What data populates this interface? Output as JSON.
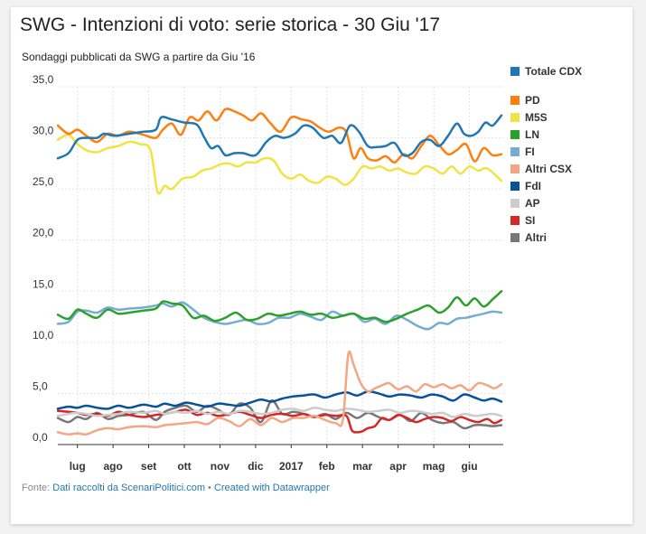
{
  "chart_data": {
    "type": "line",
    "title": "SWG - Intenzioni di voto: serie storica - 30 Giu '17",
    "subtitle": "Sondaggi pubblicati da SWG a partire da Giu '16",
    "footer_prefix": "Fonte: ",
    "footer_source": "Dati raccolti da ScenariPolitici.com",
    "footer_separator": " • ",
    "footer_credit": "Created with Datawrapper",
    "ylim": [
      0,
      35
    ],
    "yticks": [
      0,
      5,
      10,
      15,
      20,
      25,
      30,
      35
    ],
    "ytick_labels": [
      "0,0",
      "5,0",
      "10,0",
      "15,0",
      "20,0",
      "25,0",
      "30,0",
      "35,0"
    ],
    "xlim": [
      0,
      12.5
    ],
    "xticks": [
      {
        "label": "lug",
        "x": 0.55
      },
      {
        "label": "ago",
        "x": 1.55
      },
      {
        "label": "set",
        "x": 2.55
      },
      {
        "label": "ott",
        "x": 3.55
      },
      {
        "label": "nov",
        "x": 4.55
      },
      {
        "label": "dic",
        "x": 5.55
      },
      {
        "label": "2017",
        "x": 6.55
      },
      {
        "label": "feb",
        "x": 7.55
      },
      {
        "label": "mar",
        "x": 8.55
      },
      {
        "label": "apr",
        "x": 9.55
      },
      {
        "label": "mag",
        "x": 10.55
      },
      {
        "label": "giu",
        "x": 11.55
      }
    ],
    "grid": true,
    "legend_position": "right",
    "series": [
      {
        "name": "Totale CDX",
        "color": "#1f77b4",
        "x": [
          0,
          0.3,
          0.55,
          0.8,
          1.1,
          1.3,
          1.6,
          2.0,
          2.4,
          2.75,
          2.9,
          3.2,
          3.55,
          3.9,
          4.1,
          4.3,
          4.5,
          4.7,
          4.95,
          5.2,
          5.55,
          5.85,
          6.1,
          6.35,
          6.65,
          6.9,
          7.15,
          7.45,
          7.7,
          7.95,
          8.2,
          8.45,
          8.7,
          8.95,
          9.2,
          9.45,
          9.7,
          9.95,
          10.2,
          10.45,
          10.7,
          10.95,
          11.2,
          11.4,
          11.6,
          11.8,
          12.0,
          12.2,
          12.45
        ],
        "y": [
          28.0,
          28.5,
          29.8,
          30.0,
          30.0,
          30.4,
          30.2,
          30.4,
          30.6,
          30.8,
          32.0,
          31.8,
          31.5,
          31.3,
          30.1,
          29.0,
          29.2,
          28.3,
          28.5,
          28.5,
          28.3,
          29.6,
          30.2,
          30.0,
          30.4,
          31.2,
          31.0,
          30.0,
          30.2,
          29.5,
          31.2,
          30.6,
          29.2,
          29.1,
          29.2,
          29.5,
          28.3,
          28.5,
          29.6,
          29.8,
          29.2,
          30.2,
          31.4,
          30.4,
          30.2,
          30.6,
          31.5,
          31.2,
          32.2
        ]
      },
      {
        "name": "PD",
        "color": "#ff7f0e",
        "x": [
          0,
          0.3,
          0.55,
          0.8,
          1.1,
          1.4,
          1.7,
          2.0,
          2.4,
          2.75,
          2.95,
          3.2,
          3.45,
          3.7,
          3.95,
          4.2,
          4.45,
          4.7,
          4.95,
          5.2,
          5.45,
          5.7,
          5.95,
          6.25,
          6.55,
          6.85,
          7.1,
          7.35,
          7.6,
          7.9,
          8.1,
          8.3,
          8.5,
          8.7,
          8.95,
          9.2,
          9.45,
          9.7,
          9.95,
          10.2,
          10.45,
          10.7,
          10.95,
          11.2,
          11.45,
          11.7,
          11.95,
          12.2,
          12.45
        ],
        "y": [
          31.2,
          30.4,
          30.8,
          30.2,
          29.6,
          30.4,
          30.2,
          30.6,
          30.3,
          30.0,
          30.8,
          31.4,
          30.3,
          32.0,
          31.7,
          32.6,
          31.7,
          32.8,
          32.6,
          32.2,
          31.7,
          32.4,
          31.5,
          30.6,
          32.0,
          31.8,
          31.6,
          31.0,
          30.6,
          31.0,
          30.5,
          28.0,
          29.0,
          28.0,
          27.8,
          28.2,
          27.6,
          28.4,
          28.0,
          29.2,
          30.2,
          29.3,
          28.4,
          28.8,
          29.4,
          27.7,
          29.0,
          28.3,
          28.4
        ]
      },
      {
        "name": "M5S",
        "color": "#f0e442",
        "x": [
          0,
          0.3,
          0.55,
          0.8,
          1.1,
          1.4,
          1.7,
          2.0,
          2.3,
          2.6,
          2.8,
          3.0,
          3.2,
          3.5,
          3.8,
          4.05,
          4.3,
          4.55,
          4.8,
          5.05,
          5.3,
          5.55,
          5.8,
          6.05,
          6.3,
          6.55,
          6.8,
          7.05,
          7.3,
          7.55,
          7.8,
          8.05,
          8.3,
          8.55,
          8.8,
          9.05,
          9.3,
          9.55,
          9.8,
          10.05,
          10.3,
          10.55,
          10.8,
          11.05,
          11.3,
          11.55,
          11.8,
          12.05,
          12.45
        ],
        "y": [
          29.8,
          30.3,
          29.4,
          28.8,
          28.6,
          29.0,
          29.2,
          29.6,
          29.4,
          28.8,
          24.7,
          25.3,
          25.0,
          26.0,
          26.2,
          26.8,
          27.0,
          27.4,
          27.5,
          27.2,
          27.6,
          27.6,
          28.0,
          27.8,
          26.5,
          26.0,
          26.4,
          25.8,
          25.6,
          26.2,
          26.0,
          25.4,
          26.0,
          27.2,
          27.0,
          27.2,
          26.8,
          27.0,
          26.6,
          26.5,
          27.2,
          27.0,
          26.5,
          27.2,
          26.5,
          27.2,
          26.8,
          27.0,
          25.8
        ]
      },
      {
        "name": "LN",
        "color": "#2ca02c",
        "x": [
          0,
          0.3,
          0.55,
          0.8,
          1.1,
          1.4,
          1.7,
          2.0,
          2.4,
          2.75,
          2.95,
          3.2,
          3.5,
          3.8,
          4.1,
          4.4,
          4.7,
          5.0,
          5.3,
          5.6,
          5.9,
          6.2,
          6.5,
          6.8,
          7.1,
          7.4,
          7.7,
          8.0,
          8.3,
          8.6,
          8.9,
          9.2,
          9.5,
          9.8,
          10.1,
          10.4,
          10.7,
          10.95,
          11.2,
          11.45,
          11.7,
          11.95,
          12.2,
          12.45
        ],
        "y": [
          12.7,
          12.3,
          13.2,
          12.8,
          12.4,
          13.2,
          12.8,
          12.9,
          13.1,
          13.3,
          14.0,
          13.8,
          13.6,
          12.4,
          12.6,
          12.1,
          12.4,
          12.9,
          12.2,
          12.3,
          12.8,
          12.6,
          12.8,
          13.0,
          12.7,
          12.8,
          12.4,
          12.6,
          12.8,
          12.3,
          12.4,
          12.0,
          12.3,
          12.8,
          13.2,
          13.6,
          12.9,
          13.4,
          14.4,
          13.6,
          14.3,
          13.5,
          14.2,
          15.0
        ]
      },
      {
        "name": "FI",
        "color": "#74add1",
        "x": [
          0,
          0.3,
          0.55,
          0.8,
          1.1,
          1.4,
          1.7,
          2.0,
          2.4,
          2.75,
          2.95,
          3.2,
          3.5,
          3.8,
          4.1,
          4.4,
          4.7,
          5.0,
          5.3,
          5.6,
          5.9,
          6.2,
          6.5,
          6.8,
          7.1,
          7.4,
          7.7,
          8.0,
          8.3,
          8.6,
          8.9,
          9.2,
          9.5,
          9.8,
          10.1,
          10.4,
          10.7,
          10.95,
          11.2,
          11.45,
          11.7,
          11.95,
          12.2,
          12.45
        ],
        "y": [
          11.8,
          12.0,
          13.0,
          13.1,
          12.9,
          13.4,
          13.2,
          13.3,
          13.4,
          13.6,
          13.8,
          13.5,
          13.9,
          13.2,
          12.4,
          12.0,
          11.8,
          12.0,
          12.2,
          11.8,
          11.9,
          12.4,
          12.4,
          12.8,
          12.5,
          12.2,
          13.0,
          12.6,
          12.8,
          12.0,
          12.3,
          11.8,
          12.6,
          12.2,
          11.6,
          11.3,
          11.9,
          11.8,
          12.3,
          12.4,
          12.6,
          12.8,
          13.0,
          12.9
        ]
      },
      {
        "name": "Altri CSX",
        "color": "#f4a582",
        "x": [
          0,
          0.3,
          0.55,
          0.8,
          1.1,
          1.4,
          1.7,
          2.0,
          2.4,
          2.75,
          3.0,
          3.3,
          3.6,
          3.9,
          4.2,
          4.5,
          4.8,
          5.1,
          5.4,
          5.7,
          6.0,
          6.3,
          6.6,
          6.9,
          7.2,
          7.5,
          7.8,
          8.0,
          8.15,
          8.3,
          8.5,
          8.7,
          8.9,
          9.1,
          9.3,
          9.55,
          9.8,
          10.05,
          10.3,
          10.55,
          10.8,
          11.05,
          11.3,
          11.55,
          11.8,
          12.05,
          12.25,
          12.45
        ],
        "y": [
          1.2,
          1.0,
          1.1,
          1.0,
          1.4,
          1.6,
          1.5,
          1.7,
          1.8,
          1.7,
          1.9,
          2.0,
          2.1,
          2.2,
          2.0,
          2.6,
          2.3,
          1.8,
          2.5,
          1.9,
          2.6,
          2.2,
          2.6,
          2.6,
          2.8,
          2.4,
          2.1,
          2.4,
          8.8,
          7.8,
          6.0,
          5.2,
          5.5,
          5.8,
          6.0,
          5.4,
          5.7,
          5.2,
          5.9,
          5.6,
          5.9,
          5.5,
          5.8,
          5.3,
          6.0,
          5.8,
          5.5,
          5.9
        ]
      },
      {
        "name": "FdI",
        "color": "#08519c",
        "x": [
          0,
          0.3,
          0.55,
          0.8,
          1.1,
          1.4,
          1.7,
          2.0,
          2.4,
          2.75,
          3.0,
          3.3,
          3.6,
          3.9,
          4.2,
          4.5,
          4.8,
          5.1,
          5.4,
          5.7,
          6.0,
          6.3,
          6.6,
          6.9,
          7.2,
          7.5,
          7.8,
          8.1,
          8.4,
          8.7,
          9.0,
          9.3,
          9.6,
          9.9,
          10.2,
          10.5,
          10.8,
          11.1,
          11.4,
          11.7,
          11.95,
          12.2,
          12.45
        ],
        "y": [
          3.5,
          3.7,
          3.6,
          3.8,
          3.6,
          3.5,
          3.8,
          3.6,
          3.9,
          3.7,
          4.0,
          3.8,
          4.1,
          3.9,
          3.7,
          4.0,
          3.9,
          3.8,
          4.1,
          4.4,
          4.2,
          4.5,
          4.7,
          4.8,
          4.9,
          4.6,
          4.9,
          5.1,
          4.8,
          5.2,
          5.0,
          4.7,
          4.9,
          4.8,
          4.6,
          4.9,
          4.7,
          4.3,
          4.9,
          4.6,
          4.3,
          4.5,
          4.2
        ]
      },
      {
        "name": "AP",
        "color": "#cccccc",
        "x": [
          0,
          0.3,
          0.55,
          0.8,
          1.1,
          1.4,
          1.7,
          2.0,
          2.4,
          2.75,
          3.0,
          3.3,
          3.6,
          3.9,
          4.2,
          4.5,
          4.8,
          5.1,
          5.4,
          5.7,
          6.0,
          6.3,
          6.6,
          6.9,
          7.2,
          7.5,
          7.8,
          8.1,
          8.4,
          8.7,
          9.0,
          9.3,
          9.6,
          9.9,
          10.2,
          10.5,
          10.8,
          11.1,
          11.4,
          11.7,
          11.95,
          12.2,
          12.45
        ],
        "y": [
          2.8,
          3.0,
          3.1,
          3.0,
          2.8,
          2.9,
          3.0,
          3.2,
          3.1,
          3.3,
          3.0,
          3.2,
          3.1,
          3.3,
          3.0,
          3.2,
          3.0,
          3.3,
          3.2,
          3.0,
          3.1,
          3.4,
          3.5,
          3.3,
          3.6,
          3.4,
          3.3,
          3.5,
          3.4,
          3.2,
          3.3,
          3.4,
          3.1,
          3.3,
          3.2,
          3.0,
          3.1,
          2.7,
          3.0,
          2.8,
          2.9,
          3.0,
          2.8
        ]
      },
      {
        "name": "SI",
        "color": "#d62728",
        "x": [
          0,
          0.3,
          0.55,
          0.8,
          1.1,
          1.4,
          1.7,
          2.0,
          2.4,
          2.75,
          3.0,
          3.3,
          3.6,
          3.9,
          4.2,
          4.5,
          4.8,
          5.1,
          5.4,
          5.7,
          6.0,
          6.3,
          6.6,
          6.9,
          7.2,
          7.5,
          7.8,
          8.1,
          8.25,
          8.4,
          8.55,
          8.7,
          8.9,
          9.1,
          9.3,
          9.55,
          9.8,
          10.05,
          10.3,
          10.55,
          10.8,
          11.05,
          11.3,
          11.55,
          11.8,
          12.05,
          12.25,
          12.45
        ],
        "y": [
          3.3,
          3.2,
          3.1,
          2.9,
          3.0,
          2.8,
          3.2,
          2.9,
          2.7,
          2.9,
          3.0,
          3.2,
          3.4,
          2.9,
          3.1,
          2.8,
          3.0,
          3.2,
          2.9,
          2.6,
          2.9,
          3.0,
          2.8,
          3.0,
          2.7,
          2.9,
          2.8,
          2.8,
          1.4,
          1.2,
          1.3,
          1.6,
          1.8,
          2.6,
          2.4,
          2.9,
          2.6,
          2.2,
          2.5,
          2.7,
          2.6,
          2.3,
          2.7,
          2.4,
          2.2,
          2.5,
          2.1,
          2.4
        ]
      },
      {
        "name": "Altri",
        "color": "#777777",
        "x": [
          0,
          0.3,
          0.55,
          0.8,
          1.1,
          1.4,
          1.7,
          2.0,
          2.4,
          2.75,
          3.0,
          3.3,
          3.6,
          3.9,
          4.2,
          4.5,
          4.8,
          5.1,
          5.4,
          5.7,
          6.0,
          6.3,
          6.6,
          6.9,
          7.2,
          7.5,
          7.8,
          8.1,
          8.4,
          8.7,
          9.0,
          9.3,
          9.6,
          9.9,
          10.2,
          10.5,
          10.8,
          11.1,
          11.4,
          11.7,
          11.95,
          12.2,
          12.45
        ],
        "y": [
          2.6,
          2.2,
          2.7,
          2.5,
          3.1,
          2.5,
          2.8,
          2.9,
          3.2,
          2.4,
          3.2,
          3.6,
          3.8,
          3.2,
          3.8,
          3.4,
          2.9,
          4.0,
          3.6,
          2.2,
          4.3,
          3.0,
          3.2,
          3.0,
          2.7,
          3.0,
          2.5,
          3.1,
          2.6,
          3.1,
          2.7,
          2.4,
          2.9,
          2.3,
          3.1,
          2.4,
          2.1,
          2.2,
          1.6,
          1.9,
          1.9,
          1.8,
          1.9
        ]
      }
    ]
  }
}
